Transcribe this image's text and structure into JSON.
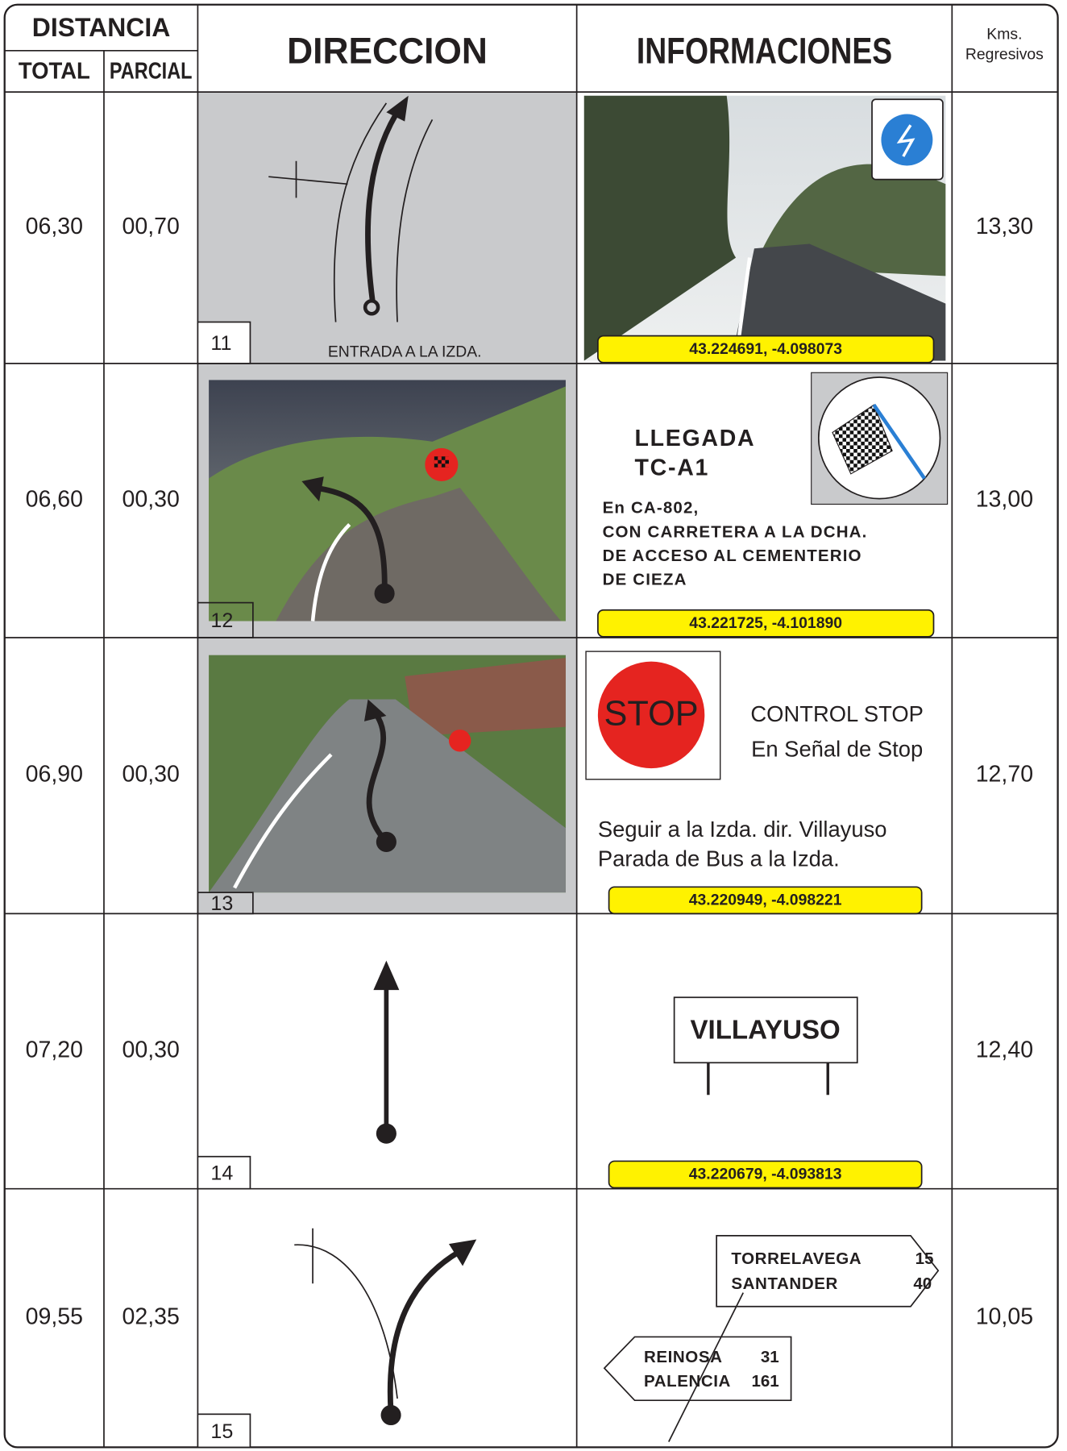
{
  "header": {
    "distancia": "DISTANCIA",
    "total": "TOTAL",
    "parcial": "PARCIAL",
    "direccion": "DIRECCION",
    "informaciones": "INFORMACIONES",
    "kms": [
      "Kms.",
      "Regresivos"
    ]
  },
  "rows": [
    {
      "total": "06,30",
      "parcial": "00,70",
      "step": "11",
      "note": "ENTRADA A LA IZDA.",
      "coordinates": "43.224691, -4.098073",
      "kms": "13,30"
    },
    {
      "total": "06,60",
      "parcial": "00,30",
      "step": "12",
      "title": [
        "LLEGADA",
        "TC-A1"
      ],
      "text": [
        "En CA-802,",
        "CON CARRETERA A LA DCHA.",
        "DE ACCESO AL CEMENTERIO",
        "DE CIEZA"
      ],
      "coordinates": "43.221725, -4.101890",
      "kms": "13,00"
    },
    {
      "total": "06,90",
      "parcial": "00,30",
      "step": "13",
      "sign": "STOP",
      "text": [
        "CONTROL STOP",
        "En Señal de Stop",
        "Seguir a la Izda. dir. Villayuso",
        "Parada de Bus a la Izda."
      ],
      "coordinates": "43.220949, -4.098221",
      "kms": "12,70"
    },
    {
      "total": "07,20",
      "parcial": "00,30",
      "step": "14",
      "sign": "VILLAYUSO",
      "coordinates": "43.220679, -4.093813",
      "kms": "12,40"
    },
    {
      "total": "09,55",
      "parcial": "02,35",
      "step": "15",
      "signs": [
        {
          "name": "TORRELAVEGA",
          "km": "15"
        },
        {
          "name": "SANTANDER",
          "km": "40"
        },
        {
          "name": "REINOSA",
          "km": "31"
        },
        {
          "name": "PALENCIA",
          "km": "161"
        }
      ],
      "kms": "10,05"
    }
  ]
}
